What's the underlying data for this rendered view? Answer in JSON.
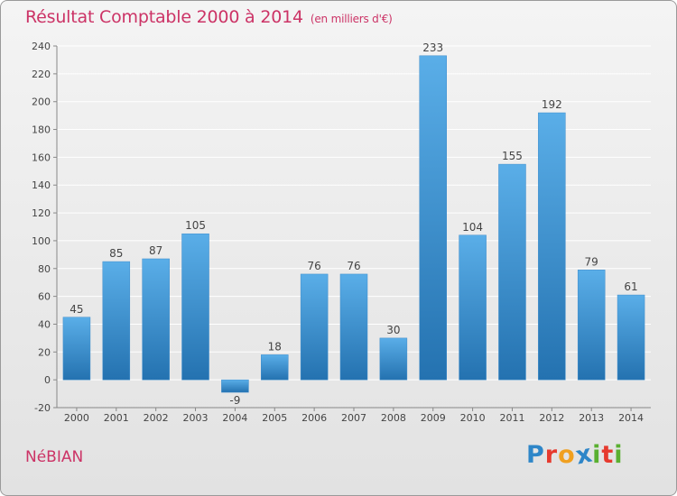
{
  "header": {
    "title": "Résultat Comptable 2000 à 2014",
    "subtitle": "(en milliers d'€)"
  },
  "footer": {
    "commune": "NéBIAN",
    "brand": [
      "P",
      "r",
      "o",
      "x",
      "i",
      "t",
      "i"
    ],
    "brand_colors": [
      "#2e86c8",
      "#e63a2e",
      "#f0a020",
      "#2e86c8",
      "#5ab030",
      "#e63a2e",
      "#5ab030"
    ]
  },
  "colors": {
    "bar_light": "#5aaee8",
    "bar_dark": "#2472b0",
    "axis": "#888888",
    "grid": "#ffffff"
  },
  "chart_data": {
    "type": "bar",
    "title": "Résultat Comptable 2000 à 2014",
    "xlabel": "",
    "ylabel": "",
    "categories": [
      "2000",
      "2001",
      "2002",
      "2003",
      "2004",
      "2005",
      "2006",
      "2007",
      "2008",
      "2009",
      "2010",
      "2011",
      "2012",
      "2013",
      "2014"
    ],
    "values": [
      45,
      85,
      87,
      105,
      -9,
      18,
      76,
      76,
      30,
      233,
      104,
      155,
      192,
      79,
      61
    ],
    "ylim": [
      -20,
      240
    ],
    "yticks": [
      -20,
      0,
      20,
      40,
      60,
      80,
      100,
      120,
      140,
      160,
      180,
      200,
      220,
      240
    ],
    "grid": true,
    "legend": "none"
  }
}
